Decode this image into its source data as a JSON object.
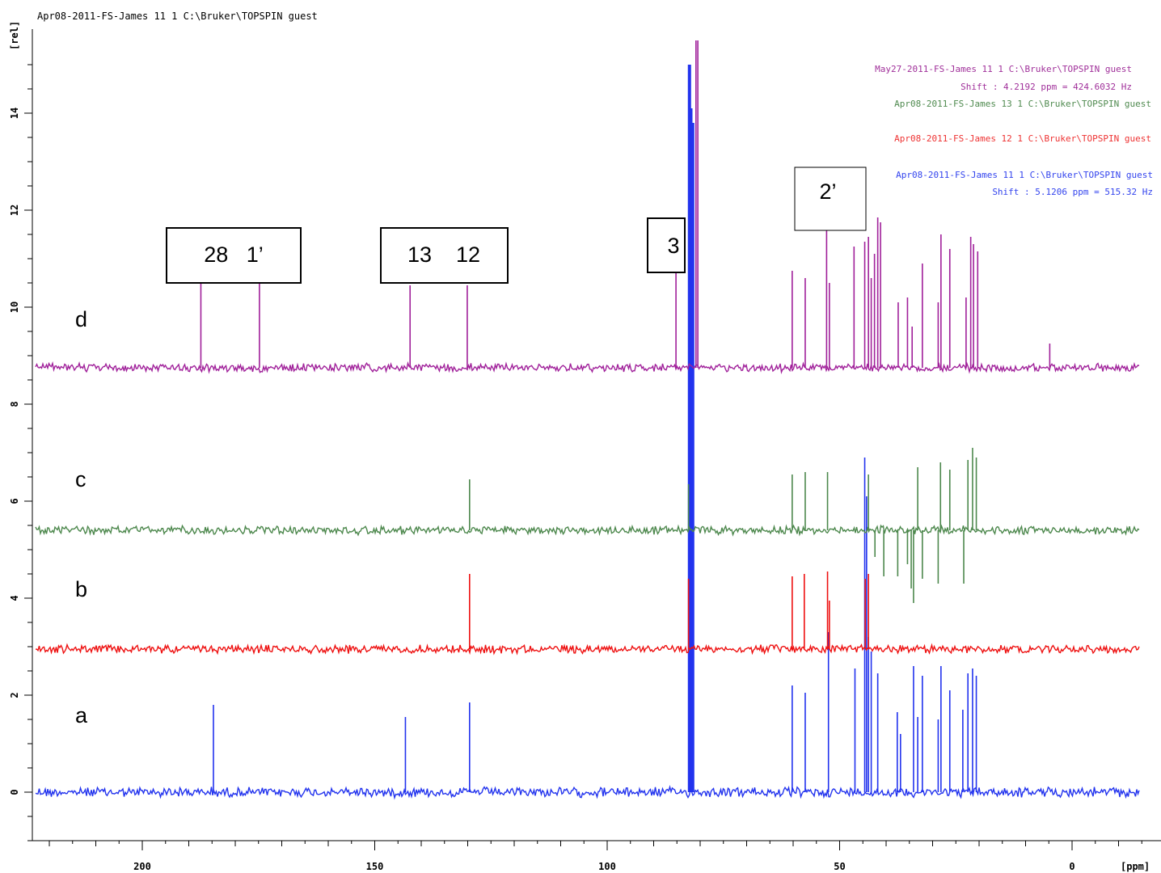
{
  "header": {
    "title": "Apr08-2011-FS-James  11  1  C:\\Bruker\\TOPSPIN  guest"
  },
  "legend": [
    {
      "text": "May27-2011-FS-James  11  1  C:\\Bruker\\TOPSPIN  guest",
      "color": "#a0309a"
    },
    {
      "text": "Shift : 4.2192 ppm = 424.6032 Hz",
      "color": "#a0309a"
    },
    {
      "text": "Apr08-2011-FS-James  13  1  C:\\Bruker\\TOPSPIN  guest",
      "color": "#4f8a4f"
    },
    {
      "text": "Apr08-2011-FS-James  12  1  C:\\Bruker\\TOPSPIN  guest",
      "color": "#ee3333"
    },
    {
      "text": "Apr08-2011-FS-James  11  1  C:\\Bruker\\TOPSPIN  guest",
      "color": "#3344ee"
    },
    {
      "text": "Shift : 5.1206 ppm = 515.32 Hz",
      "color": "#3344ee"
    }
  ],
  "trace_labels": [
    "d",
    "c",
    "b",
    "a"
  ],
  "peak_boxes": [
    {
      "text": "28   1’"
    },
    {
      "text": "13    12"
    },
    {
      "text": "3"
    },
    {
      "text": "2’"
    }
  ],
  "chart_data": {
    "type": "line",
    "title": "",
    "xlabel": "[ppm]",
    "ylabel": "[rel]",
    "x_reversed": true,
    "xlim": [
      220,
      -15
    ],
    "ylim": [
      -1,
      15.5
    ],
    "x_ticks": [
      200,
      150,
      100,
      50,
      0
    ],
    "y_ticks": [
      0,
      2,
      4,
      6,
      8,
      10,
      12,
      14
    ],
    "grid": false,
    "series": [
      {
        "name": "Apr08-2011-FS-James 11 1",
        "trace": "a",
        "color": "#2233ee",
        "baseline": 0.0,
        "noise": 0.12,
        "peaks": [
          {
            "x": 184.7,
            "y": 1.8
          },
          {
            "x": 143.4,
            "y": 1.55
          },
          {
            "x": 129.6,
            "y": 1.85
          },
          {
            "x": 82.3,
            "y": 15.0
          },
          {
            "x": 82.0,
            "y": 14.1
          },
          {
            "x": 81.6,
            "y": 13.8
          },
          {
            "x": 60.2,
            "y": 2.2
          },
          {
            "x": 57.4,
            "y": 2.05
          },
          {
            "x": 52.4,
            "y": 3.3
          },
          {
            "x": 46.7,
            "y": 2.55
          },
          {
            "x": 44.6,
            "y": 6.9
          },
          {
            "x": 44.2,
            "y": 6.1
          },
          {
            "x": 43.8,
            "y": 3.2
          },
          {
            "x": 43.2,
            "y": 2.9
          },
          {
            "x": 41.8,
            "y": 2.45
          },
          {
            "x": 37.6,
            "y": 1.65
          },
          {
            "x": 36.9,
            "y": 1.2
          },
          {
            "x": 34.1,
            "y": 2.6
          },
          {
            "x": 33.2,
            "y": 1.55
          },
          {
            "x": 32.2,
            "y": 2.4
          },
          {
            "x": 28.8,
            "y": 1.5
          },
          {
            "x": 28.2,
            "y": 2.6
          },
          {
            "x": 26.3,
            "y": 2.1
          },
          {
            "x": 23.5,
            "y": 1.7
          },
          {
            "x": 22.4,
            "y": 2.45
          },
          {
            "x": 21.4,
            "y": 2.55
          },
          {
            "x": 20.6,
            "y": 2.4
          }
        ]
      },
      {
        "name": "Apr08-2011-FS-James 12 1",
        "trace": "b",
        "color": "#ee1111",
        "baseline": 2.95,
        "noise": 0.1,
        "peaks": [
          {
            "x": 129.6,
            "y": 4.5
          },
          {
            "x": 82.5,
            "y": 4.4
          },
          {
            "x": 60.2,
            "y": 4.45
          },
          {
            "x": 57.6,
            "y": 4.5
          },
          {
            "x": 52.6,
            "y": 4.55
          },
          {
            "x": 52.2,
            "y": 3.95
          },
          {
            "x": 44.5,
            "y": 4.4
          },
          {
            "x": 43.8,
            "y": 4.5
          }
        ]
      },
      {
        "name": "Apr08-2011-FS-James 13 1",
        "trace": "c",
        "color": "#4d884d",
        "baseline": 5.4,
        "noise": 0.1,
        "peaks": [
          {
            "x": 129.6,
            "y": 6.45
          },
          {
            "x": 82.5,
            "y": 6.35
          },
          {
            "x": 60.2,
            "y": 6.55
          },
          {
            "x": 57.4,
            "y": 6.6
          },
          {
            "x": 52.6,
            "y": 6.6
          },
          {
            "x": 43.8,
            "y": 6.55
          },
          {
            "x": 42.4,
            "y": 4.85
          },
          {
            "x": 40.5,
            "y": 4.45
          },
          {
            "x": 37.5,
            "y": 4.45
          },
          {
            "x": 35.4,
            "y": 4.7
          },
          {
            "x": 34.6,
            "y": 4.2
          },
          {
            "x": 34.1,
            "y": 3.9
          },
          {
            "x": 33.2,
            "y": 6.7
          },
          {
            "x": 32.2,
            "y": 4.4
          },
          {
            "x": 28.8,
            "y": 4.3
          },
          {
            "x": 28.3,
            "y": 6.8
          },
          {
            "x": 26.3,
            "y": 6.65
          },
          {
            "x": 23.3,
            "y": 4.3
          },
          {
            "x": 22.4,
            "y": 6.85
          },
          {
            "x": 21.4,
            "y": 7.1
          },
          {
            "x": 20.6,
            "y": 6.9
          }
        ]
      },
      {
        "name": "May27-2011-FS-James 11 1",
        "trace": "d",
        "color": "#a0209a",
        "baseline": 8.75,
        "noise": 0.1,
        "peaks": [
          {
            "x": 187.4,
            "y": 10.55
          },
          {
            "x": 174.8,
            "y": 10.5
          },
          {
            "x": 142.4,
            "y": 10.45
          },
          {
            "x": 130.1,
            "y": 10.45
          },
          {
            "x": 85.2,
            "y": 10.7
          },
          {
            "x": 80.9,
            "y": 15.5
          },
          {
            "x": 80.5,
            "y": 15.5
          },
          {
            "x": 60.2,
            "y": 10.75
          },
          {
            "x": 57.4,
            "y": 10.6
          },
          {
            "x": 52.8,
            "y": 11.6
          },
          {
            "x": 52.2,
            "y": 10.5
          },
          {
            "x": 46.9,
            "y": 11.25
          },
          {
            "x": 44.6,
            "y": 11.35
          },
          {
            "x": 43.8,
            "y": 11.45
          },
          {
            "x": 43.2,
            "y": 10.6
          },
          {
            "x": 42.5,
            "y": 11.1
          },
          {
            "x": 41.8,
            "y": 11.85
          },
          {
            "x": 41.2,
            "y": 11.75
          },
          {
            "x": 37.4,
            "y": 10.1
          },
          {
            "x": 35.4,
            "y": 10.2
          },
          {
            "x": 34.4,
            "y": 9.6
          },
          {
            "x": 32.2,
            "y": 10.9
          },
          {
            "x": 28.8,
            "y": 10.1
          },
          {
            "x": 28.2,
            "y": 11.5
          },
          {
            "x": 26.3,
            "y": 11.2
          },
          {
            "x": 22.8,
            "y": 10.2
          },
          {
            "x": 21.8,
            "y": 11.45
          },
          {
            "x": 21.2,
            "y": 11.3
          },
          {
            "x": 20.3,
            "y": 11.15
          },
          {
            "x": 4.8,
            "y": 9.25
          }
        ]
      }
    ]
  }
}
